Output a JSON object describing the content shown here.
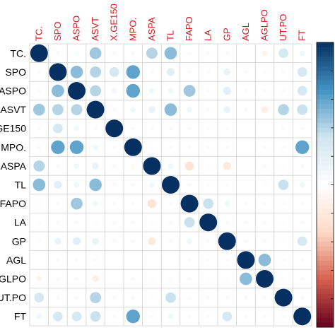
{
  "chart_data": {
    "type": "heatmap",
    "style": "corrplot-circle",
    "column_labels": [
      "TC.",
      "SPO",
      "ASPO",
      "ASVT",
      "X.GE150",
      "MPO.",
      "ASPA",
      "TL",
      "FAPO",
      "LA",
      "GP",
      "AGL",
      "AGLPO",
      "UT.PO",
      "FT"
    ],
    "row_labels": [
      "TC.",
      "SPO",
      "ASPO",
      "ASVT",
      "GE150",
      "MPO.",
      "ASPA",
      "TL",
      "FAPO",
      "LA",
      "GP",
      "AGL",
      "GLPO",
      "UT.PO",
      "FT"
    ],
    "color_scale": {
      "negative": "#8b0010",
      "neutral": "#ffffff",
      "positive": "#08306b",
      "legend_placement": "right"
    },
    "matrix": [
      [
        1.0,
        0.05,
        0.05,
        0.45,
        0.05,
        0.05,
        0.4,
        0.5,
        -0.05,
        0.05,
        0.05,
        0.0,
        -0.1,
        0.3,
        0.1
      ],
      [
        0.05,
        1.0,
        0.5,
        0.4,
        0.3,
        0.6,
        0.05,
        0.2,
        0.05,
        0.05,
        0.15,
        0.05,
        0.05,
        0.05,
        0.3
      ],
      [
        0.05,
        0.5,
        1.0,
        0.4,
        0.1,
        0.6,
        0.1,
        0.1,
        0.45,
        0.05,
        0.2,
        0.05,
        0.05,
        0.05,
        0.3
      ],
      [
        0.45,
        0.4,
        0.4,
        1.0,
        0.05,
        0.1,
        0.15,
        0.5,
        0.1,
        0.05,
        0.15,
        0.05,
        -0.15,
        0.4,
        0.35
      ],
      [
        0.05,
        0.3,
        0.1,
        0.05,
        1.0,
        0.05,
        0.05,
        0.05,
        0.05,
        0.05,
        0.05,
        0.0,
        0.0,
        0.05,
        0.05
      ],
      [
        0.05,
        0.6,
        0.6,
        0.1,
        0.05,
        1.0,
        -0.05,
        0.05,
        0.05,
        0.05,
        0.05,
        0.0,
        0.05,
        0.05,
        0.6
      ],
      [
        0.4,
        0.05,
        0.1,
        0.15,
        0.05,
        -0.05,
        1.0,
        0.1,
        -0.25,
        0.05,
        -0.2,
        0.0,
        0.05,
        0.05,
        0.05
      ],
      [
        0.5,
        0.2,
        0.1,
        0.5,
        0.05,
        0.05,
        0.1,
        1.0,
        0.05,
        0.05,
        0.05,
        0.0,
        -0.05,
        0.35,
        0.1
      ],
      [
        -0.05,
        0.05,
        0.45,
        0.1,
        0.05,
        0.05,
        -0.25,
        0.05,
        1.0,
        0.35,
        0.1,
        0.05,
        0.05,
        -0.05,
        0.05
      ],
      [
        0.05,
        0.05,
        0.05,
        0.05,
        0.05,
        0.05,
        0.05,
        0.05,
        0.35,
        1.0,
        0.05,
        0.05,
        0.05,
        0.05,
        0.05
      ],
      [
        0.05,
        0.15,
        0.2,
        0.15,
        0.05,
        0.05,
        -0.2,
        0.05,
        0.1,
        0.05,
        1.0,
        0.05,
        0.05,
        0.05,
        0.3
      ],
      [
        0.0,
        0.05,
        0.05,
        0.05,
        0.0,
        0.0,
        0.0,
        0.0,
        0.05,
        0.05,
        0.05,
        1.0,
        0.5,
        0.05,
        0.05
      ],
      [
        -0.1,
        0.05,
        0.05,
        -0.15,
        0.0,
        0.05,
        0.05,
        -0.05,
        0.05,
        0.05,
        0.05,
        0.5,
        1.0,
        0.05,
        0.05
      ],
      [
        0.3,
        0.05,
        0.05,
        0.4,
        0.05,
        0.05,
        0.05,
        0.35,
        -0.05,
        0.05,
        0.05,
        0.05,
        0.05,
        1.0,
        0.05
      ],
      [
        0.1,
        0.3,
        0.3,
        0.35,
        0.05,
        0.6,
        0.05,
        0.1,
        0.05,
        0.05,
        0.3,
        0.05,
        0.05,
        0.05,
        1.0
      ]
    ]
  }
}
